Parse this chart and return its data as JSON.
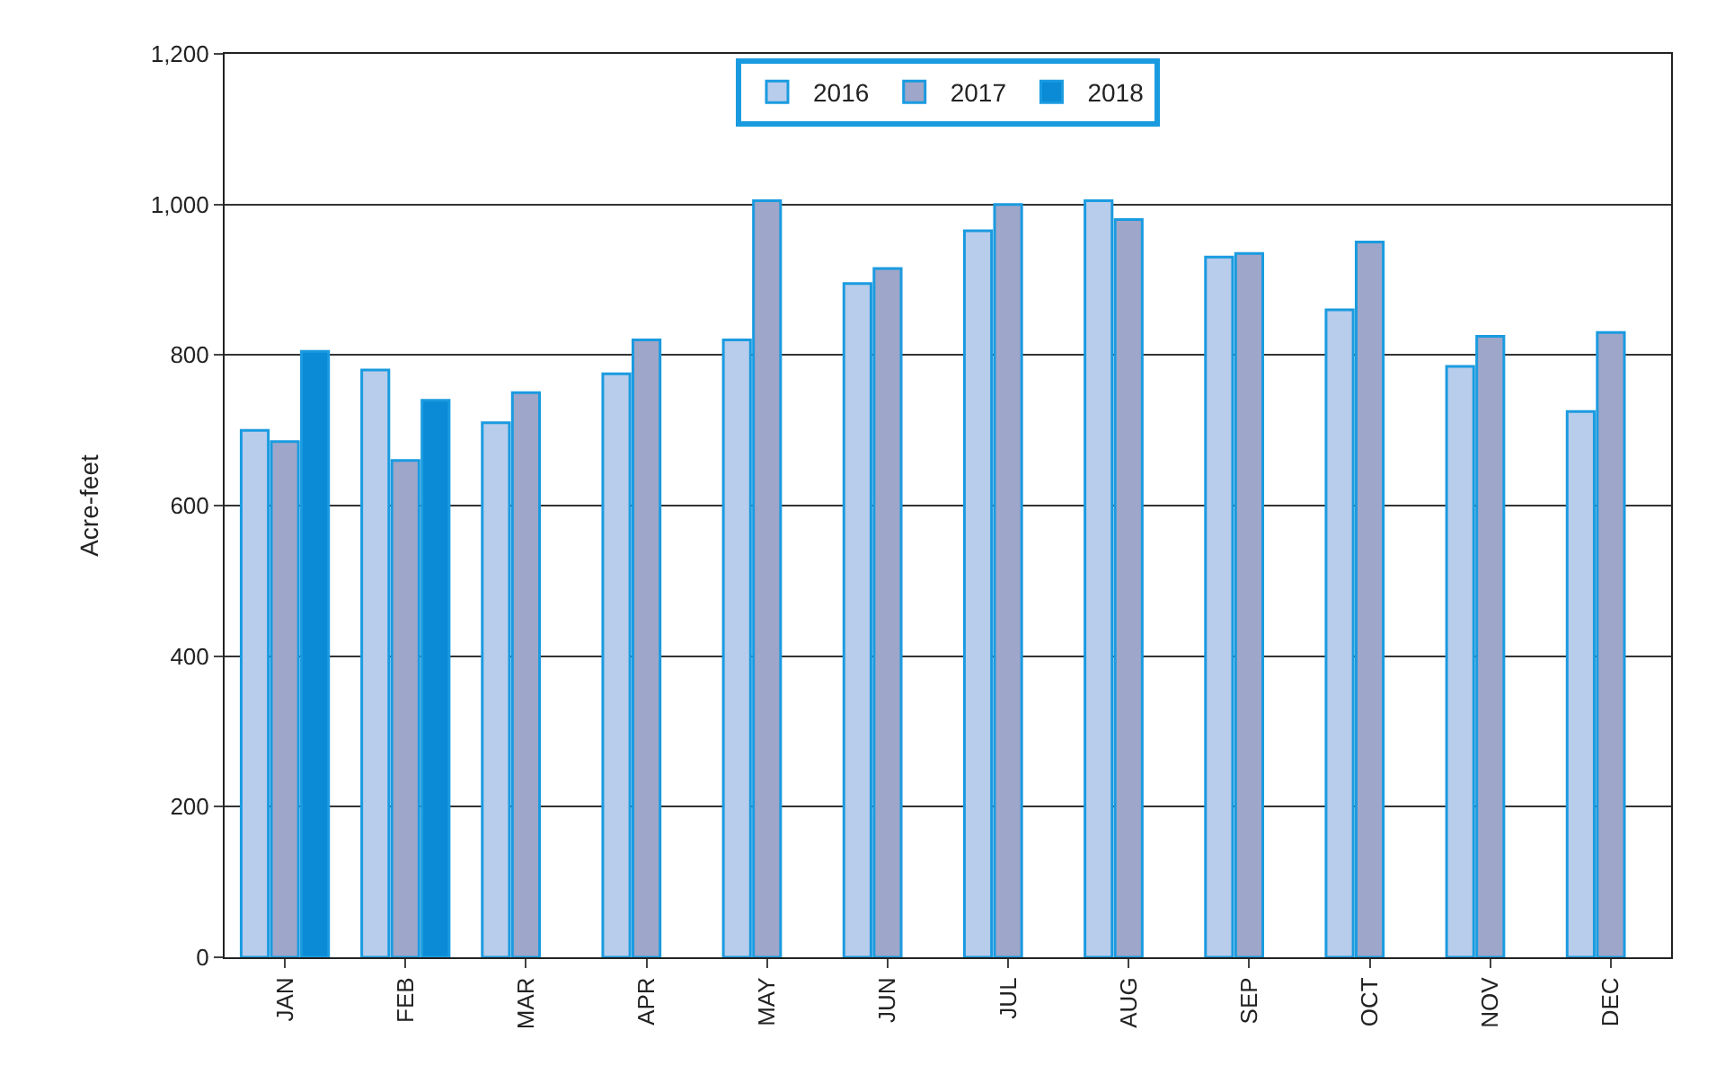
{
  "chart_data": {
    "type": "bar",
    "ylabel": "Acre-feet",
    "categories": [
      "JAN",
      "FEB",
      "MAR",
      "APR",
      "MAY",
      "JUN",
      "JUL",
      "AUG",
      "SEP",
      "OCT",
      "NOV",
      "DEC"
    ],
    "series": [
      {
        "name": "2016",
        "color": "#b8cceb",
        "values": [
          700,
          780,
          710,
          775,
          820,
          895,
          965,
          1005,
          930,
          860,
          785,
          725
        ]
      },
      {
        "name": "2017",
        "color": "#9ea6c9",
        "values": [
          685,
          660,
          750,
          820,
          1005,
          915,
          1000,
          980,
          935,
          950,
          825,
          830
        ]
      },
      {
        "name": "2018",
        "color": "#0b8ad6",
        "values": [
          805,
          740,
          null,
          null,
          null,
          null,
          null,
          null,
          null,
          null,
          null,
          null
        ]
      }
    ],
    "ylim": [
      0,
      1200
    ],
    "yticks": [
      0,
      200,
      400,
      600,
      800,
      {
        "value": 1000,
        "label": "1,000"
      },
      {
        "value": 1200,
        "label": "1,200"
      }
    ],
    "grid": "y",
    "legend": "top"
  }
}
